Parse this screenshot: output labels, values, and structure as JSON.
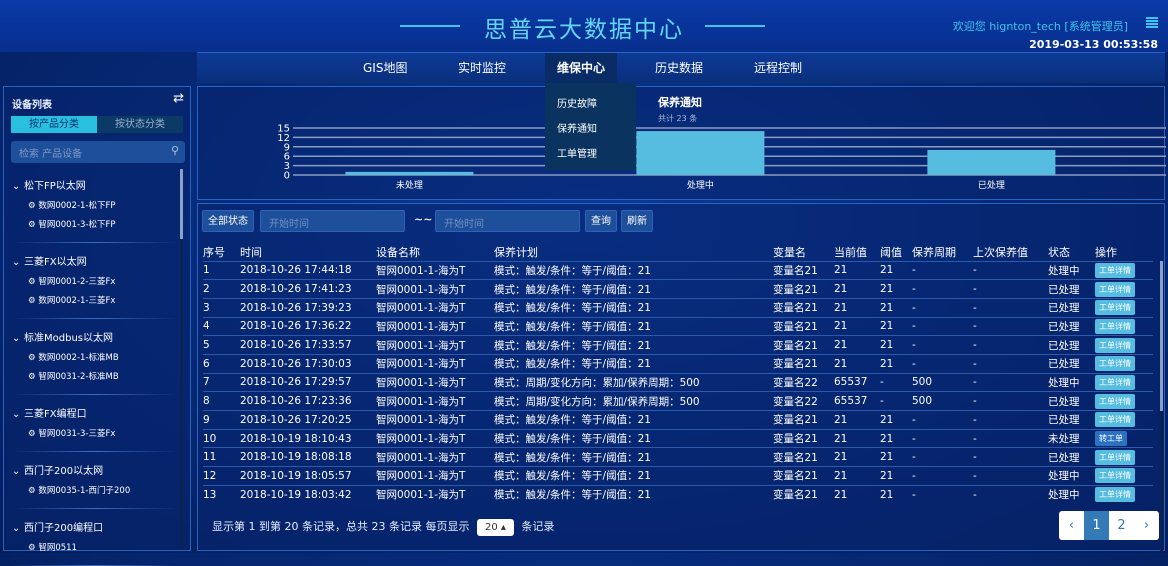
{
  "header": {
    "title": "思普云大数据中心",
    "welcome": "欢迎您  hignton_tech [系统管理员]",
    "datetime": "2019-03-13 00:53:58",
    "menu_icon": "list-icon"
  },
  "nav": {
    "items": [
      "GIS地图",
      "实时监控",
      "维保中心",
      "历史数据",
      "远程控制"
    ],
    "active": "维保中心",
    "dropdown": [
      "历史故障",
      "保养通知",
      "工单管理"
    ]
  },
  "sidebar": {
    "title": "设备列表",
    "tabs": [
      "按产品分类",
      "按状态分类"
    ],
    "active_tab": "按产品分类",
    "search_placeholder": "检索 产品设备",
    "groups": [
      {
        "name": "松下FP以太网",
        "devices": [
          "数网0002-1-松下FP",
          "智网0001-3-松下FP"
        ]
      },
      {
        "name": "三菱FX以太网",
        "devices": [
          "智网0001-2-三菱Fx",
          "数网0002-1-三菱Fx"
        ]
      },
      {
        "name": "标准Modbus以太网",
        "devices": [
          "数网0002-1-标准MB",
          "智网0031-2-标准MB"
        ]
      },
      {
        "name": "三菱FX编程口",
        "devices": [
          "智网0031-3-三菱Fx"
        ]
      },
      {
        "name": "西门子200以太网",
        "devices": [
          "数网0035-1-西门子200"
        ]
      },
      {
        "name": "西门子200编程口",
        "devices": [
          "智网0511"
        ]
      }
    ]
  },
  "chart_data": {
    "type": "bar",
    "title": "保养通知",
    "subtitle": "共计 23 条",
    "categories": [
      "未处理",
      "处理中",
      "已处理"
    ],
    "values": [
      1,
      14,
      8
    ],
    "ylim": [
      0,
      15
    ],
    "yticks": [
      0,
      3,
      6,
      9,
      12,
      15
    ],
    "grid": true,
    "color": "#57bde0"
  },
  "toolbar": {
    "status_button": "全部状态",
    "start_placeholder": "开始时间",
    "end_placeholder": "开始时间",
    "separator": "~~",
    "query": "查询",
    "refresh": "刷新"
  },
  "table": {
    "columns": [
      "序号",
      "时间",
      "设备名称",
      "保养计划",
      "变量名",
      "当前值",
      "阈值",
      "保养周期",
      "上次保养值",
      "状态",
      "操作"
    ],
    "rows": [
      [
        "1",
        "2018-10-26 17:44:18",
        "智网0001-1-海为T",
        "模式：触发/条件：等于/阈值：21",
        "变量名21",
        "21",
        "21",
        "-",
        "-",
        "处理中",
        "工单详情"
      ],
      [
        "2",
        "2018-10-26 17:41:23",
        "智网0001-1-海为T",
        "模式：触发/条件：等于/阈值：21",
        "变量名21",
        "21",
        "21",
        "-",
        "-",
        "已处理",
        "工单详情"
      ],
      [
        "3",
        "2018-10-26 17:39:23",
        "智网0001-1-海为T",
        "模式：触发/条件：等于/阈值：21",
        "变量名21",
        "21",
        "21",
        "-",
        "-",
        "已处理",
        "工单详情"
      ],
      [
        "4",
        "2018-10-26 17:36:22",
        "智网0001-1-海为T",
        "模式：触发/条件：等于/阈值：21",
        "变量名21",
        "21",
        "21",
        "-",
        "-",
        "已处理",
        "工单详情"
      ],
      [
        "5",
        "2018-10-26 17:33:57",
        "智网0001-1-海为T",
        "模式：触发/条件：等于/阈值：21",
        "变量名21",
        "21",
        "21",
        "-",
        "-",
        "已处理",
        "工单详情"
      ],
      [
        "6",
        "2018-10-26 17:30:03",
        "智网0001-1-海为T",
        "模式：触发/条件：等于/阈值：21",
        "变量名21",
        "21",
        "21",
        "-",
        "-",
        "已处理",
        "工单详情"
      ],
      [
        "7",
        "2018-10-26 17:29:57",
        "智网0001-1-海为T",
        "模式：周期/变化方向：累加/保养周期：500",
        "变量名22",
        "65537",
        "-",
        "500",
        "-",
        "处理中",
        "工单详情"
      ],
      [
        "8",
        "2018-10-26 17:23:36",
        "智网0001-1-海为T",
        "模式：周期/变化方向：累加/保养周期：500",
        "变量名22",
        "65537",
        "-",
        "500",
        "-",
        "已处理",
        "工单详情"
      ],
      [
        "9",
        "2018-10-26 17:20:25",
        "智网0001-1-海为T",
        "模式：触发/条件：等于/阈值：21",
        "变量名21",
        "21",
        "21",
        "-",
        "-",
        "已处理",
        "工单详情"
      ],
      [
        "10",
        "2018-10-19 18:10:43",
        "智网0001-1-海为T",
        "模式：触发/条件：等于/阈值：21",
        "变量名21",
        "21",
        "21",
        "-",
        "-",
        "未处理",
        "转工单"
      ],
      [
        "11",
        "2018-10-19 18:08:18",
        "智网0001-1-海为T",
        "模式：触发/条件：等于/阈值：21",
        "变量名21",
        "21",
        "21",
        "-",
        "-",
        "已处理",
        "工单详情"
      ],
      [
        "12",
        "2018-10-19 18:05:57",
        "智网0001-1-海为T",
        "模式：触发/条件：等于/阈值：21",
        "变量名21",
        "21",
        "21",
        "-",
        "-",
        "处理中",
        "工单详情"
      ],
      [
        "13",
        "2018-10-19 18:03:42",
        "智网0001-1-海为T",
        "模式：触发/条件：等于/阈值：21",
        "变量名21",
        "21",
        "21",
        "-",
        "-",
        "处理中",
        "工单详情"
      ]
    ]
  },
  "footer": {
    "summary": "显示第 1 到第 20 条记录，总共 23 条记录 每页显示",
    "page_size": "20 ▴",
    "suffix": "条记录",
    "pages": [
      "‹",
      "1",
      "2",
      "›"
    ],
    "current_page": "1"
  }
}
